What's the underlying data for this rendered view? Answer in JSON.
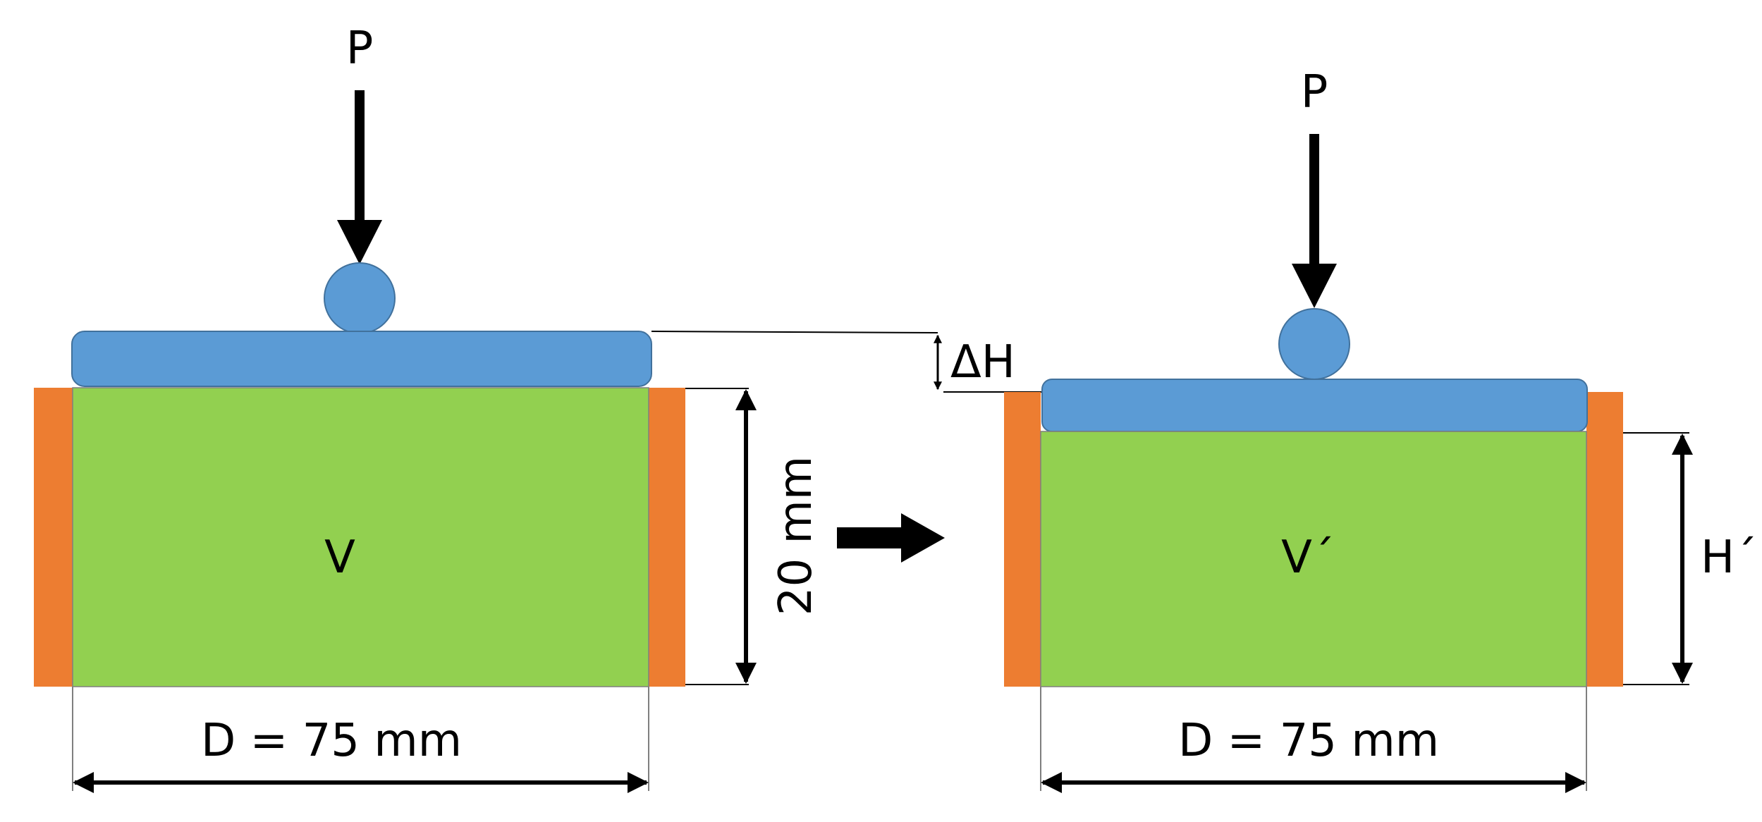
{
  "left": {
    "load_label": "P",
    "volume_label": "V",
    "height_label": "20 mm",
    "diameter_label": "D = 75 mm"
  },
  "right": {
    "load_label": "P",
    "volume_label": "V´",
    "height_label": "H´",
    "diameter_label": "D = 75 mm"
  },
  "settlement_label": "ΔH",
  "colors": {
    "soil": "#92d050",
    "ring": "#ed7d31",
    "platen": "#5b9bd5",
    "outline": "#000000"
  }
}
